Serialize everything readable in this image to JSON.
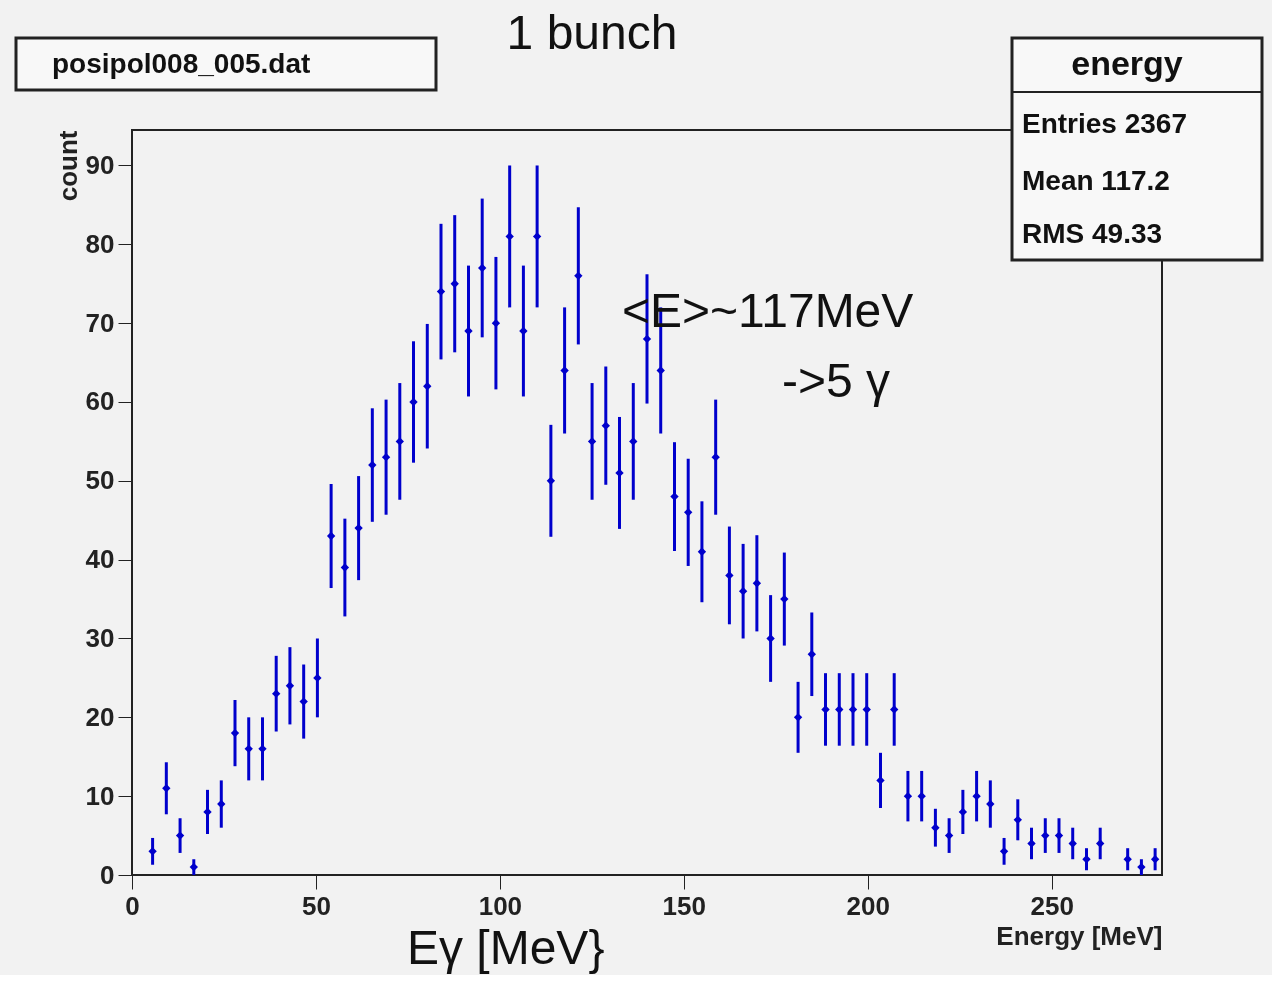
{
  "chart_data": {
    "type": "scatter",
    "title": "1 bunch",
    "xlabel": "Energy [MeV]",
    "ylabel": "count",
    "x": [
      5.6,
      9.33,
      13.07,
      16.8,
      20.53,
      24.27,
      28.0,
      31.73,
      35.47,
      39.2,
      42.93,
      46.67,
      50.4,
      54.13,
      57.87,
      61.6,
      65.33,
      69.07,
      72.8,
      76.53,
      80.27,
      84.0,
      87.73,
      91.47,
      95.2,
      98.93,
      102.67,
      106.4,
      110.13,
      113.87,
      117.6,
      121.33,
      125.07,
      128.8,
      132.53,
      136.27,
      140.0,
      143.73,
      147.47,
      151.2,
      154.93,
      158.67,
      162.4,
      166.13,
      169.87,
      173.6,
      177.33,
      181.07,
      184.8,
      188.53,
      192.27,
      196.0,
      199.73,
      203.47,
      207.2,
      210.93,
      214.67,
      218.4,
      222.13,
      225.87,
      229.6,
      233.33,
      237.07,
      240.8,
      244.53,
      248.27,
      252.0,
      255.73,
      259.47,
      263.2,
      266.93,
      270.67,
      274.4,
      278.13
    ],
    "series": [
      {
        "color": "#0000cc",
        "values": [
          3,
          11,
          5,
          1,
          8,
          9,
          18,
          16,
          16,
          23,
          24,
          22,
          25,
          43,
          39,
          44,
          52,
          53,
          55,
          60,
          62,
          74,
          75,
          69,
          77,
          70,
          81,
          69,
          81,
          50,
          64,
          76,
          55,
          57,
          51,
          55,
          68,
          64,
          48,
          46,
          41,
          53,
          38,
          36,
          37,
          30,
          35,
          20,
          28,
          21,
          21,
          21,
          21,
          12,
          21,
          10,
          10,
          6,
          5,
          8,
          10,
          9,
          3,
          7,
          4,
          5,
          5,
          4,
          2,
          4,
          null,
          2,
          1,
          2
        ],
        "errors": [
          1.7,
          3.3,
          2.2,
          1.0,
          2.8,
          3.0,
          4.2,
          4.0,
          4.0,
          4.8,
          4.9,
          4.7,
          5.0,
          6.6,
          6.2,
          6.6,
          7.2,
          7.3,
          7.4,
          7.7,
          7.9,
          8.6,
          8.7,
          8.3,
          8.8,
          8.4,
          9.0,
          8.3,
          9.0,
          7.1,
          8.0,
          8.7,
          7.4,
          7.5,
          7.1,
          7.4,
          8.2,
          8.0,
          6.9,
          6.8,
          6.4,
          7.3,
          6.2,
          6.0,
          6.1,
          5.5,
          5.9,
          4.5,
          5.3,
          4.6,
          4.6,
          4.6,
          4.6,
          3.5,
          4.6,
          3.2,
          3.2,
          2.4,
          2.2,
          2.8,
          3.2,
          3.0,
          1.7,
          2.6,
          2.0,
          2.2,
          2.2,
          2.0,
          1.4,
          2.0,
          null,
          1.4,
          1.0,
          1.4
        ]
      }
    ],
    "xlim": [
      0,
      280
    ],
    "xticks": [
      0,
      50,
      100,
      150,
      200,
      250
    ],
    "ylim": [
      0,
      94.5
    ],
    "yticks": [
      0,
      10,
      20,
      30,
      40,
      50,
      60,
      70,
      80,
      90
    ],
    "marker": "diamond",
    "grid": false,
    "annotations": [
      "posipol008_005.dat",
      "energy",
      "Entries 2367",
      "Mean 117.2",
      "RMS 49.33",
      "<E>~117MeV",
      "->5 γ",
      "Eγ [MeV}"
    ]
  }
}
